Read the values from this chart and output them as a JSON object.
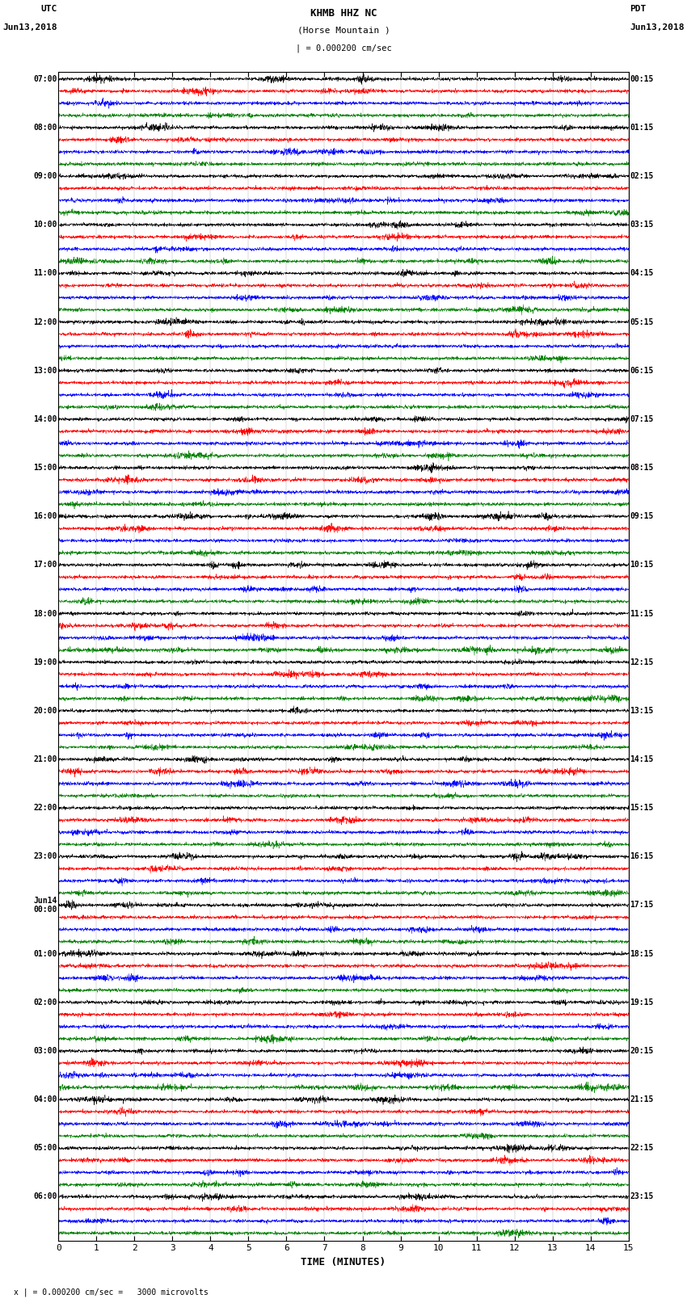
{
  "title_station": "KHMB HHZ NC",
  "title_location": "(Horse Mountain )",
  "title_scale": "| = 0.000200 cm/sec",
  "label_left_top1": "UTC",
  "label_left_top2": "Jun13,2018",
  "label_right_top1": "PDT",
  "label_right_top2": "Jun13,2018",
  "xlabel": "TIME (MINUTES)",
  "footer": "x | = 0.000200 cm/sec =   3000 microvolts",
  "utc_hours": [
    "07:00",
    "08:00",
    "09:00",
    "10:00",
    "11:00",
    "12:00",
    "13:00",
    "14:00",
    "15:00",
    "16:00",
    "17:00",
    "18:00",
    "19:00",
    "20:00",
    "21:00",
    "22:00",
    "23:00",
    "Jun14\n00:00",
    "01:00",
    "02:00",
    "03:00",
    "04:00",
    "05:00",
    "06:00"
  ],
  "pdt_hours": [
    "00:15",
    "01:15",
    "02:15",
    "03:15",
    "04:15",
    "05:15",
    "06:15",
    "07:15",
    "08:15",
    "09:15",
    "10:15",
    "11:15",
    "12:15",
    "13:15",
    "14:15",
    "15:15",
    "16:15",
    "17:15",
    "18:15",
    "19:15",
    "20:15",
    "21:15",
    "22:15",
    "23:15"
  ],
  "n_hours": 24,
  "n_traces_per_hour": 4,
  "trace_colors": [
    "black",
    "red",
    "blue",
    "green"
  ],
  "xlim": [
    0,
    15
  ],
  "xticks": [
    0,
    1,
    2,
    3,
    4,
    5,
    6,
    7,
    8,
    9,
    10,
    11,
    12,
    13,
    14,
    15
  ],
  "amplitude": 0.35,
  "noise_amplitude": 0.12,
  "background_color": "white",
  "fig_width": 8.5,
  "fig_height": 16.13,
  "dpi": 100,
  "vgrid_color": "#aaaaaa",
  "vgrid_lw": 0.3
}
